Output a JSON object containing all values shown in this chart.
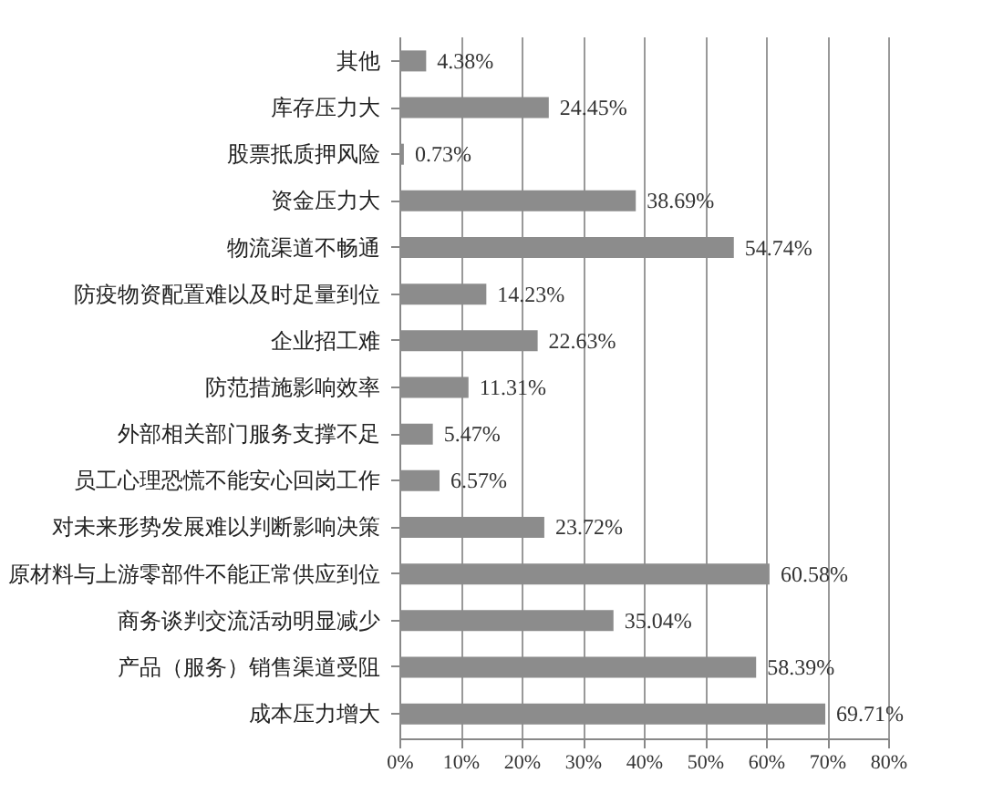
{
  "chart_data": {
    "type": "bar",
    "orientation": "horizontal",
    "categories": [
      "其他",
      "库存压力大",
      "股票抵质押风险",
      "资金压力大",
      "物流渠道不畅通",
      "防疫物资配置难以及时足量到位",
      "企业招工难",
      "防范措施影响效率",
      "外部相关部门服务支撑不足",
      "员工心理恐慌不能安心回岗工作",
      "对未来形势发展难以判断影响决策",
      "原材料与上游零部件不能正常供应到位",
      "商务谈判交流活动明显减少",
      "产品（服务）销售渠道受阻",
      "成本压力增大"
    ],
    "values": [
      4.38,
      24.45,
      0.73,
      38.69,
      54.74,
      14.23,
      22.63,
      11.31,
      5.47,
      6.57,
      23.72,
      60.58,
      35.04,
      58.39,
      69.71
    ],
    "value_labels": [
      "4.38%",
      "24.45%",
      "0.73%",
      "38.69%",
      "54.74%",
      "14.23%",
      "22.63%",
      "11.31%",
      "5.47%",
      "6.57%",
      "23.72%",
      "60.58%",
      "35.04%",
      "58.39%",
      "69.71%"
    ],
    "color": "#8c8c8c",
    "xlim": [
      0,
      80
    ],
    "xticks": [
      {
        "value": 0,
        "label": "0%"
      },
      {
        "value": 10,
        "label": "10%"
      },
      {
        "value": 20,
        "label": "20%"
      },
      {
        "value": 30,
        "label": "30%"
      },
      {
        "value": 40,
        "label": "40%"
      },
      {
        "value": 50,
        "label": "50%"
      },
      {
        "value": 60,
        "label": "60%"
      },
      {
        "value": 70,
        "label": "70%"
      },
      {
        "value": 80,
        "label": "80%"
      }
    ],
    "grid": "x"
  }
}
